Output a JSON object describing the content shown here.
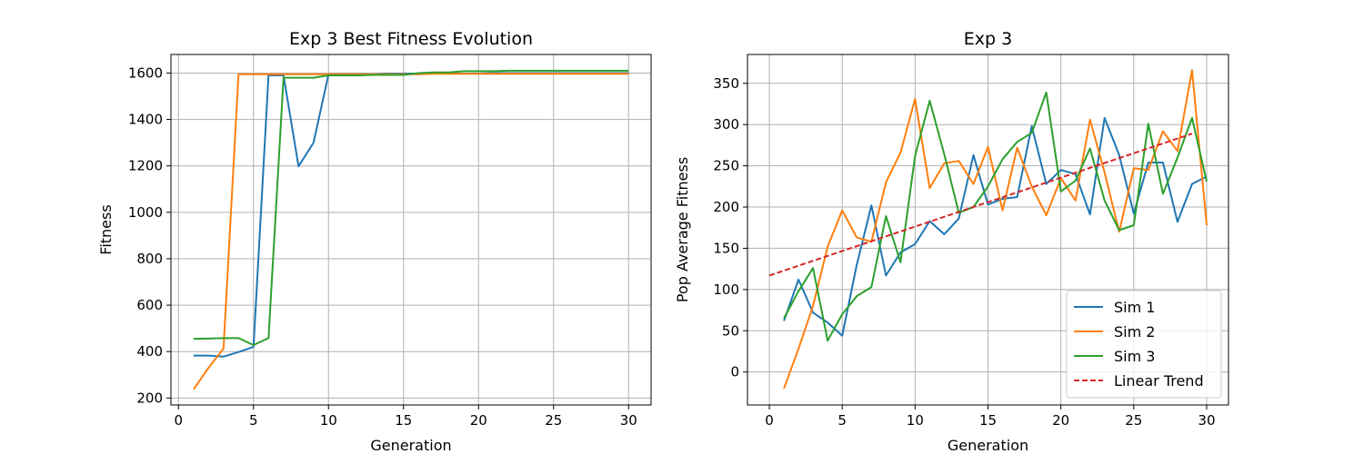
{
  "chart_data": [
    {
      "type": "line",
      "title": "Exp 3 Best Fitness Evolution",
      "xlabel": "Generation",
      "ylabel": "Fitness",
      "xlim": [
        -0.5,
        31.5
      ],
      "ylim": [
        170,
        1680
      ],
      "xticks": [
        0,
        5,
        10,
        15,
        20,
        25,
        30
      ],
      "yticks": [
        200,
        400,
        600,
        800,
        1000,
        1200,
        1400,
        1600
      ],
      "grid": true,
      "legend": null,
      "x": [
        1,
        2,
        3,
        4,
        5,
        6,
        7,
        8,
        9,
        10,
        11,
        12,
        13,
        14,
        15,
        16,
        17,
        18,
        19,
        20,
        21,
        22,
        23,
        24,
        25,
        26,
        27,
        28,
        29,
        30
      ],
      "series": [
        {
          "color": "#1f77b4",
          "values": [
            383,
            383,
            378,
            398,
            420,
            1590,
            1590,
            1198,
            1300,
            1595,
            1595,
            1595,
            1595,
            1598,
            1598,
            1598,
            1598,
            1598,
            1598,
            1598,
            1600,
            1600,
            1600,
            1600,
            1600,
            1600,
            1600,
            1600,
            1600,
            1600
          ]
        },
        {
          "color": "#ff7f0e",
          "values": [
            237,
            330,
            413,
            1595,
            1595,
            1595,
            1595,
            1595,
            1595,
            1595,
            1595,
            1595,
            1595,
            1595,
            1595,
            1595,
            1597,
            1597,
            1597,
            1597,
            1597,
            1597,
            1597,
            1597,
            1597,
            1597,
            1597,
            1597,
            1597,
            1597
          ]
        },
        {
          "color": "#2ca02c",
          "values": [
            455,
            456,
            458,
            458,
            428,
            458,
            1580,
            1580,
            1580,
            1590,
            1590,
            1590,
            1592,
            1592,
            1592,
            1600,
            1603,
            1603,
            1608,
            1608,
            1608,
            1610,
            1610,
            1610,
            1610,
            1610,
            1610,
            1610,
            1610,
            1610
          ]
        }
      ]
    },
    {
      "type": "line",
      "title": "Exp 3",
      "xlabel": "Generation",
      "ylabel": "Pop Average Fitness",
      "xlim": [
        -1.5,
        31.5
      ],
      "ylim": [
        -40,
        385
      ],
      "xticks": [
        0,
        5,
        10,
        15,
        20,
        25,
        30
      ],
      "yticks": [
        0,
        50,
        100,
        150,
        200,
        250,
        300,
        350
      ],
      "grid": true,
      "legend": "lower right",
      "x": [
        1,
        2,
        3,
        4,
        5,
        6,
        7,
        8,
        9,
        10,
        11,
        12,
        13,
        14,
        15,
        16,
        17,
        18,
        19,
        20,
        21,
        22,
        23,
        24,
        25,
        26,
        27,
        28,
        29,
        30
      ],
      "series": [
        {
          "name": "Sim 1",
          "color": "#1f77b4",
          "values": [
            62,
            112,
            72,
            60,
            44,
            130,
            202,
            117,
            145,
            155,
            183,
            167,
            186,
            263,
            203,
            210,
            212,
            298,
            228,
            245,
            240,
            191,
            308,
            263,
            192,
            254,
            254,
            182,
            228,
            237
          ]
        },
        {
          "name": "Sim 2",
          "color": "#ff7f0e",
          "values": [
            -20,
            28,
            80,
            152,
            196,
            163,
            158,
            230,
            266,
            331,
            223,
            253,
            256,
            228,
            273,
            196,
            272,
            225,
            190,
            235,
            208,
            306,
            242,
            170,
            247,
            245,
            292,
            268,
            366,
            178
          ]
        },
        {
          "name": "Sim 3",
          "color": "#2ca02c",
          "values": [
            65,
            98,
            126,
            38,
            70,
            92,
            103,
            189,
            133,
            262,
            329,
            264,
            193,
            200,
            225,
            258,
            279,
            290,
            339,
            219,
            232,
            271,
            208,
            172,
            178,
            301,
            216,
            260,
            308,
            231
          ]
        }
      ],
      "trend": {
        "name": "Linear Trend",
        "color": "#d62728",
        "x": [
          0,
          29
        ],
        "y": [
          117,
          289
        ]
      }
    }
  ]
}
